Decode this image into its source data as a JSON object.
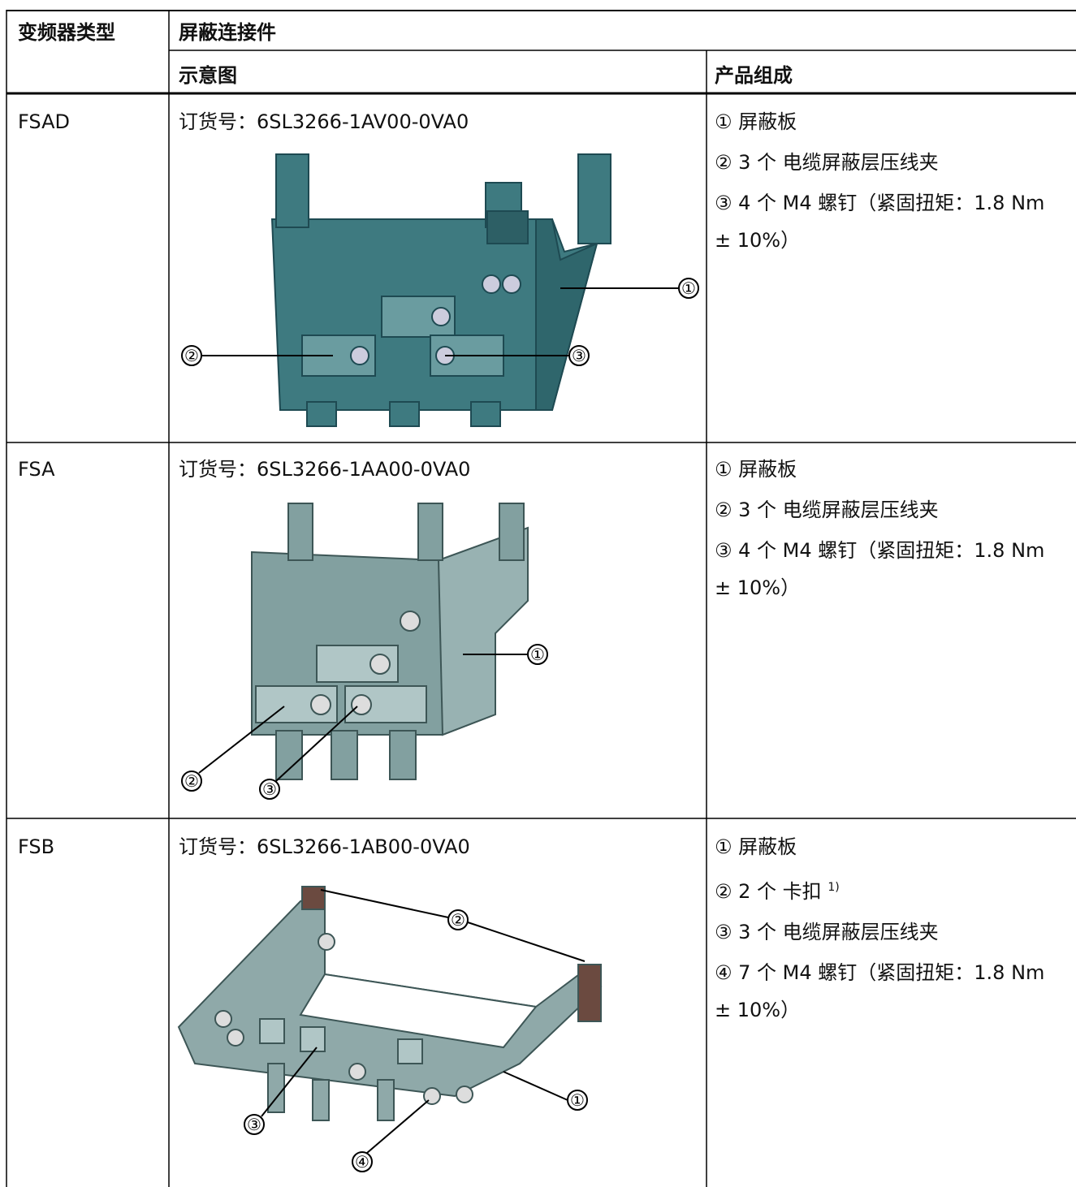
{
  "table": {
    "header": {
      "type_col": "变频器类型",
      "part_col": "屏蔽连接件",
      "diagram_col": "示意图",
      "content_col": "产品组成"
    },
    "rows": [
      {
        "type": "FSAD",
        "order": "订货号：6SL3266-1AV00-0VA0",
        "callouts": [
          "①",
          "②",
          "③"
        ],
        "components": [
          {
            "text": "① 屏蔽板"
          },
          {
            "text": "② 3 个 电缆屏蔽层压线夹"
          },
          {
            "text": "③ 4 个 M4 螺钉（紧固扭矩：1.8 Nm ± 10%）"
          }
        ]
      },
      {
        "type": "FSA",
        "order": "订货号：6SL3266-1AA00-0VA0",
        "callouts": [
          "①",
          "②",
          "③"
        ],
        "components": [
          {
            "text": "① 屏蔽板"
          },
          {
            "text": "② 3 个 电缆屏蔽层压线夹"
          },
          {
            "text": "③ 4 个 M4 螺钉（紧固扭矩：1.8 Nm ± 10%）"
          }
        ]
      },
      {
        "type": "FSB",
        "order": "订货号：6SL3266-1AB00-0VA0",
        "callouts": [
          "①",
          "②",
          "③",
          "④"
        ],
        "components": [
          {
            "text": "① 屏蔽板"
          },
          {
            "text": "② 2 个 卡扣",
            "note": "1)"
          },
          {
            "text": "③ 3 个 电缆屏蔽层压线夹"
          },
          {
            "text": "④ 7 个 M4 螺钉（紧固扭矩：1.8 Nm ± 10%）"
          }
        ]
      }
    ]
  }
}
